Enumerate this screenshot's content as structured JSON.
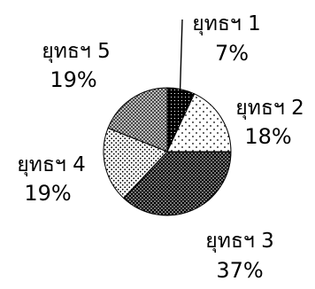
{
  "chart_data": {
    "type": "pie",
    "title": "",
    "slices": [
      {
        "label": "ยุทธฯ 1",
        "value": 7,
        "value_label": "7%",
        "fill": "solid-black-white-dots"
      },
      {
        "label": "ยุทธฯ 2",
        "value": 18,
        "value_label": "18%",
        "fill": "white-sparse-dots"
      },
      {
        "label": "ยุทธฯ 3",
        "value": 37,
        "value_label": "37%",
        "fill": "black-dense-white-dots"
      },
      {
        "label": "ยุทธฯ 4",
        "value": 19,
        "value_label": "19%",
        "fill": "white-dense-dots"
      },
      {
        "label": "ยุทธฯ 5",
        "value": 19,
        "value_label": "19%",
        "fill": "gray-crosshatch"
      }
    ],
    "start_angle_deg": 0,
    "direction": "clockwise",
    "legend": "none",
    "label_style": "outside-with-leader-line"
  }
}
